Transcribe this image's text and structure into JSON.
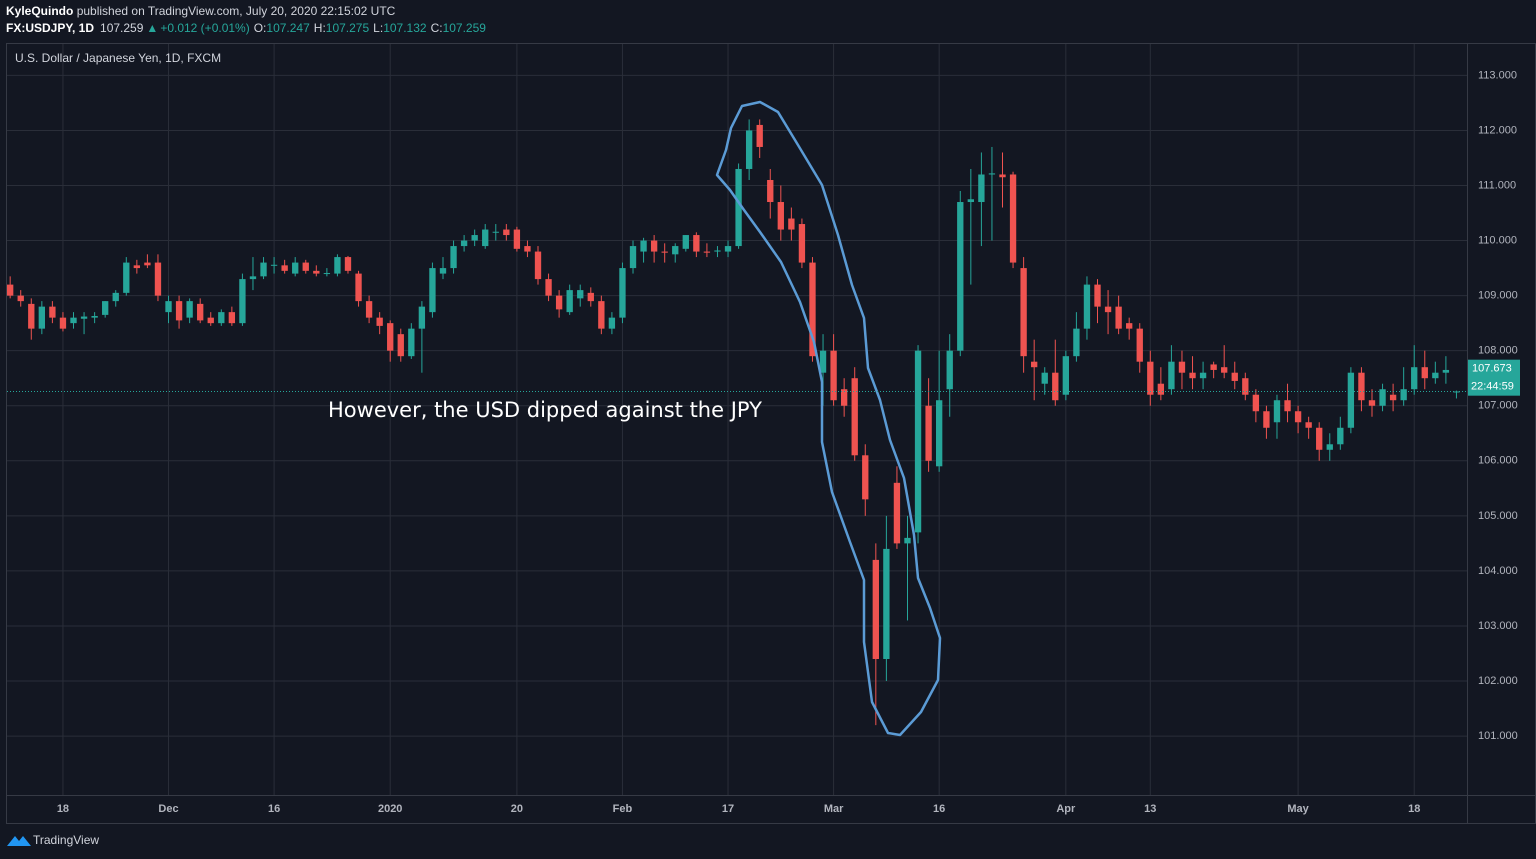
{
  "header": {
    "author": "KyleQuindo",
    "published": "published on TradingView.com, July 20, 2020 22:15:02 UTC",
    "symbol": "FX:USDJPY, 1D",
    "last": "107.259",
    "arrow": "▲",
    "change": "+0.012 (+0.01%)",
    "o_label": "O:",
    "open": "107.247",
    "h_label": "H:",
    "high": "107.275",
    "l_label": "L:",
    "low": "107.132",
    "c_label": "C:",
    "close": "107.259"
  },
  "footer": {
    "brand": "TradingView"
  },
  "chart_data": {
    "type": "candlestick",
    "title": "U.S. Dollar / Japanese Yen, 1D, FXCM",
    "annotation": "However, the USD dipped against the JPY",
    "up_color": "#26a69a",
    "down_color": "#ef5350",
    "grid": true,
    "xlim": [
      -0.3,
      138
    ],
    "ylim": [
      99.93,
      113.57
    ],
    "yticks": [
      {
        "value": 101,
        "label": "101.000"
      },
      {
        "value": 102,
        "label": "102.000"
      },
      {
        "value": 103,
        "label": "103.000"
      },
      {
        "value": 104,
        "label": "104.000"
      },
      {
        "value": 105,
        "label": "105.000"
      },
      {
        "value": 106,
        "label": "106.000"
      },
      {
        "value": 107,
        "label": "107.000"
      },
      {
        "value": 108,
        "label": "108.000"
      },
      {
        "value": 109,
        "label": "109.000"
      },
      {
        "value": 110,
        "label": "110.000"
      },
      {
        "value": 111,
        "label": "111.000"
      },
      {
        "value": 112,
        "label": "112.000"
      },
      {
        "value": 113,
        "label": "113.000"
      }
    ],
    "xticks": [
      {
        "value": 5,
        "label": "18"
      },
      {
        "value": 15,
        "label": "Dec"
      },
      {
        "value": 25,
        "label": "16"
      },
      {
        "value": 36,
        "label": "2020"
      },
      {
        "value": 48,
        "label": "20"
      },
      {
        "value": 58,
        "label": "Feb"
      },
      {
        "value": 68,
        "label": "17"
      },
      {
        "value": 78,
        "label": "Mar"
      },
      {
        "value": 88,
        "label": "16"
      },
      {
        "value": 100,
        "label": "Apr"
      },
      {
        "value": 108,
        "label": "13"
      },
      {
        "value": 122,
        "label": "May"
      },
      {
        "value": 133,
        "label": "18"
      }
    ],
    "price_label": {
      "value": 107.673,
      "label": "107.673"
    },
    "countdown": "22:44:59",
    "candles": [
      [
        109.2,
        109.35,
        108.95,
        109.0
      ],
      [
        109.0,
        109.1,
        108.8,
        108.9
      ],
      [
        108.85,
        108.95,
        108.2,
        108.4
      ],
      [
        108.4,
        108.9,
        108.3,
        108.8
      ],
      [
        108.8,
        108.9,
        108.5,
        108.6
      ],
      [
        108.6,
        108.7,
        108.35,
        108.4
      ],
      [
        108.5,
        108.7,
        108.4,
        108.6
      ],
      [
        108.58,
        108.7,
        108.3,
        108.62
      ],
      [
        108.6,
        108.7,
        108.5,
        108.63
      ],
      [
        108.65,
        108.9,
        108.6,
        108.9
      ],
      [
        108.9,
        109.1,
        108.8,
        109.05
      ],
      [
        109.05,
        109.7,
        109.0,
        109.6
      ],
      [
        109.55,
        109.65,
        109.4,
        109.5
      ],
      [
        109.6,
        109.75,
        109.5,
        109.55
      ],
      [
        109.6,
        109.75,
        108.9,
        109.0
      ],
      [
        108.7,
        109.0,
        108.5,
        108.9
      ],
      [
        108.9,
        109.0,
        108.4,
        108.55
      ],
      [
        108.6,
        108.95,
        108.5,
        108.9
      ],
      [
        108.85,
        108.95,
        108.5,
        108.55
      ],
      [
        108.6,
        108.7,
        108.45,
        108.5
      ],
      [
        108.5,
        108.75,
        108.45,
        108.7
      ],
      [
        108.7,
        108.8,
        108.45,
        108.5
      ],
      [
        108.5,
        109.4,
        108.45,
        109.3
      ],
      [
        109.3,
        109.7,
        109.1,
        109.35
      ],
      [
        109.35,
        109.7,
        109.3,
        109.6
      ],
      [
        109.55,
        109.7,
        109.4,
        109.56
      ],
      [
        109.55,
        109.65,
        109.4,
        109.45
      ],
      [
        109.4,
        109.7,
        109.35,
        109.6
      ],
      [
        109.6,
        109.65,
        109.4,
        109.45
      ],
      [
        109.45,
        109.55,
        109.35,
        109.4
      ],
      [
        109.4,
        109.5,
        109.35,
        109.41
      ],
      [
        109.4,
        109.75,
        109.35,
        109.7
      ],
      [
        109.7,
        109.72,
        109.4,
        109.45
      ],
      [
        109.4,
        109.45,
        108.8,
        108.9
      ],
      [
        108.9,
        109.0,
        108.5,
        108.6
      ],
      [
        108.6,
        108.7,
        108.3,
        108.45
      ],
      [
        108.5,
        108.55,
        107.8,
        108.0
      ],
      [
        108.3,
        108.4,
        107.8,
        107.9
      ],
      [
        107.9,
        108.5,
        107.85,
        108.4
      ],
      [
        108.4,
        108.9,
        107.6,
        108.8
      ],
      [
        108.7,
        109.6,
        108.6,
        109.5
      ],
      [
        109.4,
        109.7,
        109.3,
        109.5
      ],
      [
        109.5,
        110.0,
        109.4,
        109.9
      ],
      [
        109.9,
        110.1,
        109.8,
        110.0
      ],
      [
        110.0,
        110.2,
        109.9,
        110.1
      ],
      [
        109.9,
        110.3,
        109.85,
        110.2
      ],
      [
        110.15,
        110.3,
        110.0,
        110.16
      ],
      [
        110.2,
        110.3,
        110.0,
        110.1
      ],
      [
        110.2,
        110.25,
        109.8,
        109.85
      ],
      [
        109.9,
        110.0,
        109.7,
        109.8
      ],
      [
        109.8,
        109.9,
        109.2,
        109.3
      ],
      [
        109.3,
        109.4,
        108.9,
        109.0
      ],
      [
        109.0,
        109.1,
        108.6,
        108.75
      ],
      [
        108.7,
        109.2,
        108.65,
        109.1
      ],
      [
        108.95,
        109.2,
        108.8,
        109.1
      ],
      [
        109.05,
        109.15,
        108.8,
        108.9
      ],
      [
        108.9,
        109.0,
        108.3,
        108.4
      ],
      [
        108.4,
        108.7,
        108.3,
        108.6
      ],
      [
        108.6,
        109.6,
        108.5,
        109.5
      ],
      [
        109.5,
        110.0,
        109.4,
        109.9
      ],
      [
        109.8,
        110.05,
        109.6,
        110.0
      ],
      [
        110.0,
        110.1,
        109.6,
        109.8
      ],
      [
        109.8,
        109.95,
        109.6,
        109.78
      ],
      [
        109.75,
        109.95,
        109.6,
        109.9
      ],
      [
        109.85,
        110.1,
        109.8,
        110.1
      ],
      [
        110.1,
        110.15,
        109.7,
        109.8
      ],
      [
        109.8,
        109.95,
        109.7,
        109.78
      ],
      [
        109.8,
        109.9,
        109.7,
        109.82
      ],
      [
        109.8,
        110.0,
        109.7,
        109.9
      ],
      [
        109.9,
        111.4,
        109.85,
        111.3
      ],
      [
        111.3,
        112.2,
        111.1,
        112.0
      ],
      [
        112.1,
        112.2,
        111.5,
        111.7
      ],
      [
        111.1,
        111.3,
        110.4,
        110.7
      ],
      [
        110.7,
        111.0,
        110.0,
        110.2
      ],
      [
        110.4,
        110.6,
        110.0,
        110.2
      ],
      [
        110.3,
        110.4,
        109.5,
        109.6
      ],
      [
        109.6,
        109.7,
        107.8,
        107.9
      ],
      [
        107.6,
        108.3,
        107.0,
        108.0
      ],
      [
        108.0,
        108.3,
        107.0,
        107.1
      ],
      [
        107.3,
        107.5,
        106.8,
        107.0
      ],
      [
        107.5,
        107.7,
        106.0,
        106.1
      ],
      [
        106.1,
        106.3,
        105.0,
        105.3
      ],
      [
        104.2,
        104.5,
        101.2,
        102.4
      ],
      [
        102.4,
        105.0,
        102.0,
        104.4
      ],
      [
        105.6,
        105.9,
        104.4,
        104.5
      ],
      [
        104.5,
        105.0,
        103.1,
        104.6
      ],
      [
        104.7,
        108.1,
        104.5,
        108.0
      ],
      [
        107.0,
        107.5,
        105.8,
        106.0
      ],
      [
        105.9,
        108.0,
        105.8,
        107.1
      ],
      [
        107.3,
        108.3,
        106.8,
        108.0
      ],
      [
        108.0,
        110.9,
        107.9,
        110.7
      ],
      [
        110.7,
        111.3,
        109.2,
        110.75
      ],
      [
        110.7,
        111.6,
        109.9,
        111.2
      ],
      [
        111.2,
        111.7,
        110.0,
        111.22
      ],
      [
        111.2,
        111.6,
        110.6,
        111.15
      ],
      [
        111.2,
        111.25,
        109.5,
        109.6
      ],
      [
        109.5,
        109.7,
        107.6,
        107.9
      ],
      [
        107.8,
        108.2,
        107.1,
        107.7
      ],
      [
        107.4,
        107.7,
        107.2,
        107.6
      ],
      [
        107.6,
        108.2,
        107.0,
        107.1
      ],
      [
        107.2,
        108.0,
        107.1,
        107.9
      ],
      [
        107.9,
        108.7,
        107.8,
        108.4
      ],
      [
        108.4,
        109.35,
        108.2,
        109.2
      ],
      [
        109.2,
        109.3,
        108.5,
        108.8
      ],
      [
        108.8,
        109.1,
        108.3,
        108.7
      ],
      [
        108.8,
        109.0,
        108.3,
        108.4
      ],
      [
        108.5,
        108.6,
        108.2,
        108.4
      ],
      [
        108.4,
        108.5,
        107.6,
        107.8
      ],
      [
        107.8,
        108.0,
        107.0,
        107.2
      ],
      [
        107.4,
        107.7,
        107.1,
        107.2
      ],
      [
        107.3,
        108.1,
        107.2,
        107.8
      ],
      [
        107.8,
        108.0,
        107.3,
        107.6
      ],
      [
        107.6,
        107.9,
        107.3,
        107.5
      ],
      [
        107.5,
        107.8,
        107.3,
        107.6
      ],
      [
        107.75,
        107.8,
        107.5,
        107.65
      ],
      [
        107.7,
        108.1,
        107.5,
        107.6
      ],
      [
        107.6,
        107.8,
        107.3,
        107.45
      ],
      [
        107.5,
        107.6,
        107.1,
        107.2
      ],
      [
        107.2,
        107.3,
        106.7,
        106.9
      ],
      [
        106.9,
        107.0,
        106.4,
        106.6
      ],
      [
        106.7,
        107.2,
        106.4,
        107.1
      ],
      [
        107.1,
        107.4,
        106.7,
        106.9
      ],
      [
        106.9,
        107.0,
        106.5,
        106.7
      ],
      [
        106.7,
        106.8,
        106.4,
        106.6
      ],
      [
        106.6,
        106.7,
        106.0,
        106.2
      ],
      [
        106.2,
        106.5,
        106.0,
        106.3
      ],
      [
        106.3,
        106.8,
        106.2,
        106.6
      ],
      [
        106.6,
        107.7,
        106.5,
        107.6
      ],
      [
        107.6,
        107.7,
        106.9,
        107.1
      ],
      [
        107.1,
        107.3,
        106.8,
        107.0
      ],
      [
        107.0,
        107.4,
        106.9,
        107.3
      ],
      [
        107.2,
        107.4,
        106.9,
        107.1
      ],
      [
        107.1,
        107.7,
        107.0,
        107.3
      ],
      [
        107.3,
        108.1,
        107.2,
        107.7
      ],
      [
        107.7,
        108.0,
        107.3,
        107.5
      ],
      [
        107.5,
        107.8,
        107.4,
        107.6
      ],
      [
        107.6,
        107.9,
        107.4,
        107.65
      ],
      [
        107.247,
        107.275,
        107.132,
        107.259
      ]
    ]
  }
}
